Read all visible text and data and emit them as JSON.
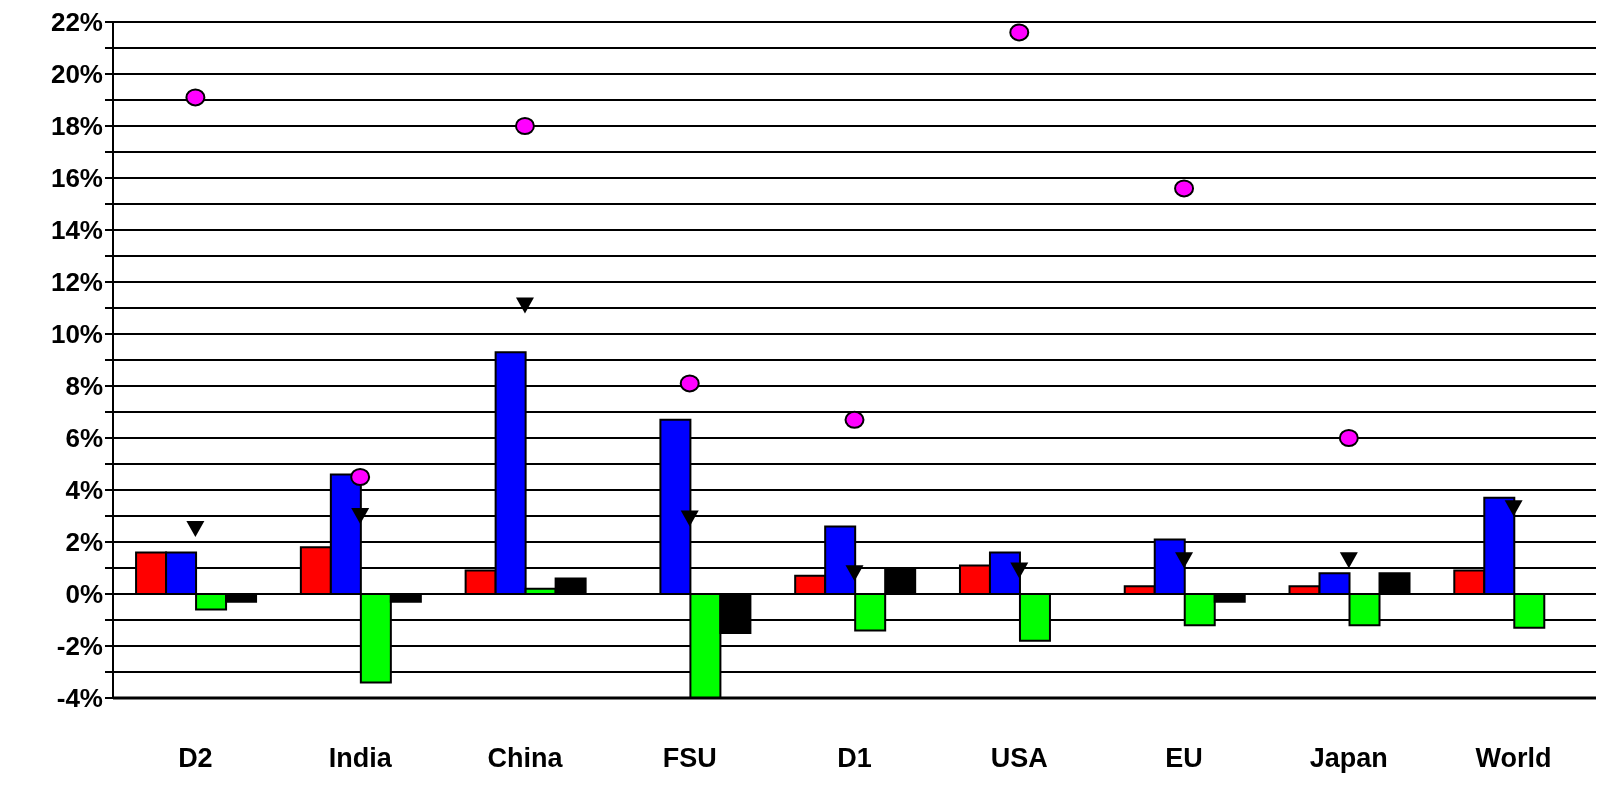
{
  "chart_data": {
    "type": "bar",
    "categories": [
      "D2",
      "India",
      "China",
      "FSU",
      "D1",
      "USA",
      "EU",
      "Japan",
      "World"
    ],
    "series": [
      {
        "color": "#ff0000",
        "values": [
          1.6,
          1.8,
          0.9,
          null,
          0.7,
          1.1,
          0.3,
          0.3,
          0.9
        ]
      },
      {
        "color": "#0000ff",
        "values": [
          1.6,
          4.6,
          9.3,
          6.7,
          2.6,
          1.6,
          2.1,
          0.8,
          3.7
        ]
      },
      {
        "color": "#00ff00",
        "values": [
          -0.6,
          -3.4,
          0.2,
          -4.0,
          -1.4,
          -1.8,
          -1.2,
          -1.2,
          -1.3
        ]
      },
      {
        "color": "#000000",
        "values": [
          -0.3,
          -0.3,
          0.6,
          -1.5,
          1.0,
          null,
          -0.3,
          0.8,
          null
        ]
      },
      {
        "type": "scatter",
        "marker": "circle",
        "color": "#ff00ff",
        "values": [
          19.1,
          4.5,
          18.0,
          8.1,
          6.7,
          21.6,
          15.6,
          6.0,
          null
        ]
      },
      {
        "type": "scatter",
        "marker": "triangle",
        "color": "#000000",
        "values": [
          2.5,
          3.0,
          11.1,
          2.9,
          0.8,
          0.9,
          1.3,
          1.3,
          3.3
        ]
      }
    ],
    "ylim": [
      -4,
      22
    ],
    "yticks": [
      {
        "value": -4,
        "label": "-4%"
      },
      {
        "value": -3,
        "label": null
      },
      {
        "value": -2,
        "label": "-2%"
      },
      {
        "value": -1,
        "label": null
      },
      {
        "value": 0,
        "label": "0%"
      },
      {
        "value": 1,
        "label": null
      },
      {
        "value": 2,
        "label": "2%"
      },
      {
        "value": 3,
        "label": null
      },
      {
        "value": 4,
        "label": "4%"
      },
      {
        "value": 5,
        "label": null
      },
      {
        "value": 6,
        "label": "6%"
      },
      {
        "value": 7,
        "label": null
      },
      {
        "value": 8,
        "label": "8%"
      },
      {
        "value": 9,
        "label": null
      },
      {
        "value": 10,
        "label": "10%"
      },
      {
        "value": 11,
        "label": null
      },
      {
        "value": 12,
        "label": "12%"
      },
      {
        "value": 13,
        "label": null
      },
      {
        "value": 14,
        "label": "14%"
      },
      {
        "value": 15,
        "label": null
      },
      {
        "value": 16,
        "label": "16%"
      },
      {
        "value": 17,
        "label": null
      },
      {
        "value": 18,
        "label": "18%"
      },
      {
        "value": 19,
        "label": null
      },
      {
        "value": 20,
        "label": "20%"
      },
      {
        "value": 21,
        "label": null
      },
      {
        "value": 22,
        "label": "22%"
      }
    ],
    "grid": "y"
  }
}
